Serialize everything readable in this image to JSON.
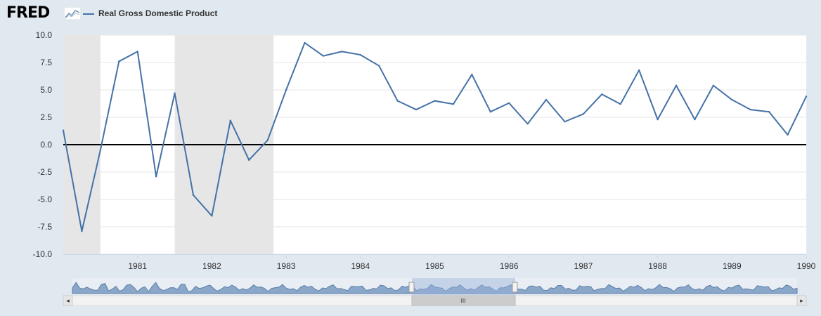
{
  "header": {
    "logo_text": "FRED",
    "legend_label": "Real Gross Domestic Product"
  },
  "navigator": {
    "scroll_grip": "III",
    "left_arrow": "◂",
    "right_arrow": "▸"
  },
  "colors": {
    "series": "#4572a7",
    "recession": "#e6e6e6",
    "background": "#e1e9f0",
    "plot": "#ffffff",
    "zero_line": "#000000"
  },
  "chart_data": {
    "type": "line",
    "title": "",
    "xlabel": "",
    "ylabel": "",
    "xlim": [
      1980.0,
      1990.0
    ],
    "ylim": [
      -10,
      10
    ],
    "yticks": [
      10.0,
      7.5,
      5.0,
      2.5,
      0.0,
      -2.5,
      -5.0,
      -7.5,
      -10.0
    ],
    "ytick_labels": [
      "10.0",
      "7.5",
      "5.0",
      "2.5",
      "0.0",
      "-2.5",
      "-5.0",
      "-7.5",
      "-10.0"
    ],
    "xticks": [
      1981,
      1982,
      1983,
      1984,
      1985,
      1986,
      1987,
      1988,
      1989,
      1990
    ],
    "xtick_labels": [
      "1981",
      "1982",
      "1983",
      "1984",
      "1985",
      "1986",
      "1987",
      "1988",
      "1989",
      "1990"
    ],
    "grid": "horizontal",
    "zero_line": true,
    "recessions": [
      [
        1980.0,
        1980.5
      ],
      [
        1981.5,
        1982.83
      ]
    ],
    "series": [
      {
        "name": "Real Gross Domestic Product",
        "x": [
          1980.0,
          1980.25,
          1980.5,
          1980.75,
          1981.0,
          1981.25,
          1981.5,
          1981.75,
          1982.0,
          1982.25,
          1982.5,
          1982.75,
          1983.0,
          1983.25,
          1983.5,
          1983.75,
          1984.0,
          1984.25,
          1984.5,
          1984.75,
          1985.0,
          1985.25,
          1985.5,
          1985.75,
          1986.0,
          1986.25,
          1986.5,
          1986.75,
          1987.0,
          1987.25,
          1987.5,
          1987.75,
          1988.0,
          1988.25,
          1988.5,
          1988.75,
          1989.0,
          1989.25,
          1989.5,
          1989.75,
          1990.0
        ],
        "values": [
          1.3,
          -7.9,
          -0.5,
          7.6,
          8.5,
          -2.9,
          4.7,
          -4.6,
          -6.5,
          2.2,
          -1.4,
          0.4,
          5.0,
          9.3,
          8.1,
          8.5,
          8.2,
          7.2,
          4.0,
          3.2,
          4.0,
          3.7,
          6.4,
          3.0,
          3.8,
          1.9,
          4.1,
          2.1,
          2.8,
          4.6,
          3.7,
          6.8,
          2.3,
          5.4,
          2.3,
          5.4,
          4.1,
          3.2,
          3.0,
          0.9,
          4.4
        ]
      }
    ]
  }
}
